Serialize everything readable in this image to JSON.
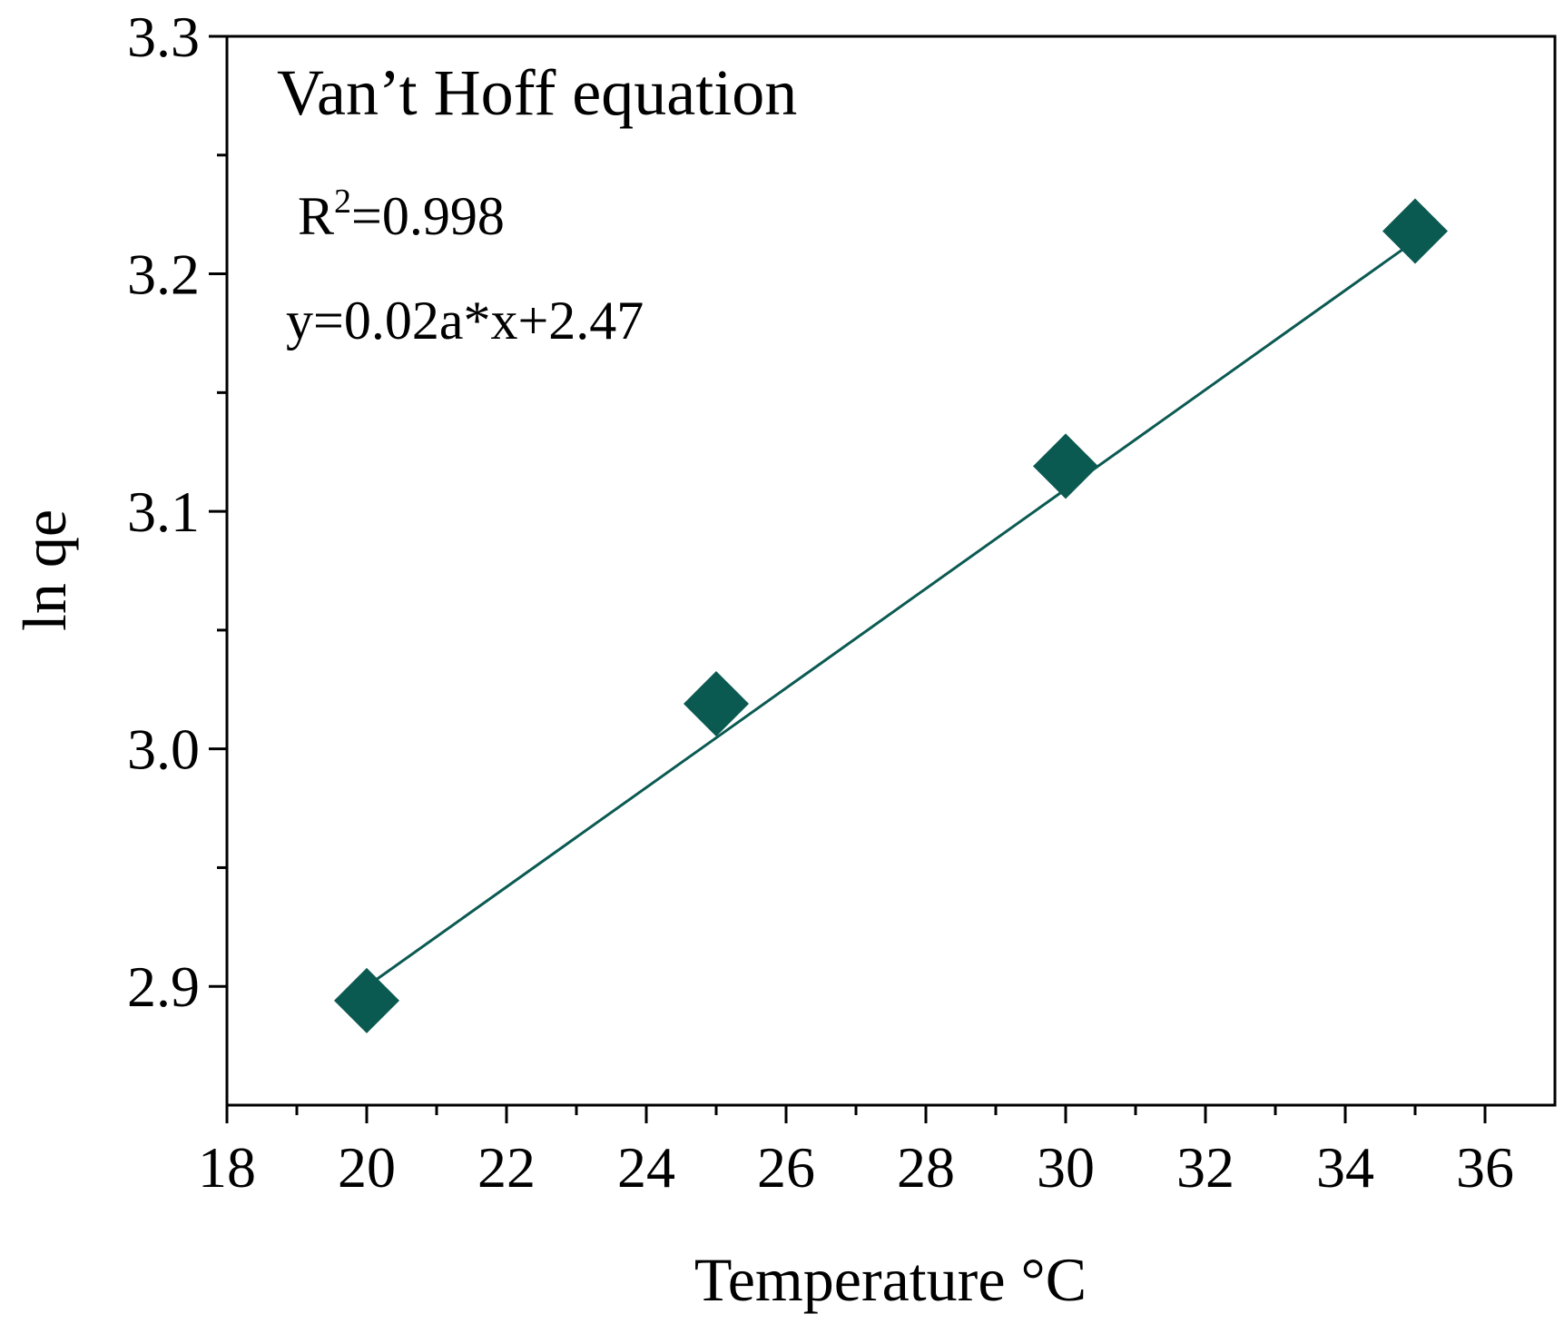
{
  "chart_data": {
    "type": "scatter",
    "title": "Van’t Hoff equation",
    "xlabel": "Temperature °C",
    "ylabel": "ln qe",
    "xlim": [
      18,
      37
    ],
    "ylim": [
      2.85,
      3.3
    ],
    "xticks": [
      "18",
      "20",
      "22",
      "24",
      "26",
      "28",
      "30",
      "32",
      "34",
      "36"
    ],
    "yticks": [
      "2.9",
      "3.0",
      "3.1",
      "3.2",
      "3.3"
    ],
    "grid": false,
    "color": "#0b5a52",
    "marker": "diamond",
    "points": [
      {
        "x": 20,
        "y": 2.894
      },
      {
        "x": 25,
        "y": 3.019
      },
      {
        "x": 30,
        "y": 3.119
      },
      {
        "x": 35,
        "y": 3.218
      }
    ],
    "fit": {
      "x": [
        20,
        35
      ],
      "y": [
        2.9,
        3.214
      ]
    },
    "annotations": {
      "r2_base": "R",
      "r2_sup": "2",
      "r2_value": "=0.998",
      "equation": "y=0.02a*x+2.47"
    }
  }
}
